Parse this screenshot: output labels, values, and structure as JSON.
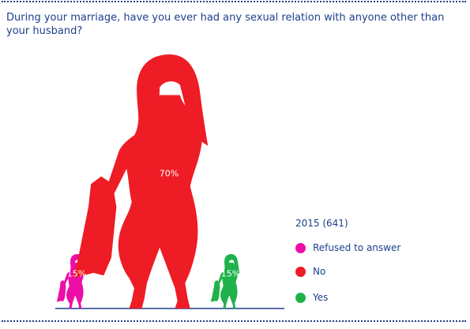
{
  "question": "During your marriage, have you ever had any sexual relation with anyone other than your husband?",
  "chart_data": {
    "type": "bar",
    "categories": [
      "Refused to answer",
      "No",
      "Yes"
    ],
    "series": [
      {
        "name": "2015 (641)",
        "values": [
          15,
          70,
          15
        ],
        "value_labels": [
          "15%",
          "70%",
          "15%"
        ]
      }
    ],
    "title": "",
    "xlabel": "",
    "ylabel": "",
    "ylim": [
      0,
      70
    ],
    "grid": false,
    "legend_position": "right",
    "mark_style": "pictogram-woman-silhouette"
  },
  "legend": {
    "title": "2015 (641)",
    "items": [
      {
        "label": "Refused to answer",
        "color": "#ef0da7"
      },
      {
        "label": "No",
        "color": "#ee1c25"
      },
      {
        "label": "Yes",
        "color": "#1fb24a"
      }
    ]
  },
  "colors": {
    "text": "#1d3f8a",
    "baseline": "#1d3f8a",
    "refused": "#ef0da7",
    "no": "#ee1c25",
    "yes": "#1fb24a"
  }
}
